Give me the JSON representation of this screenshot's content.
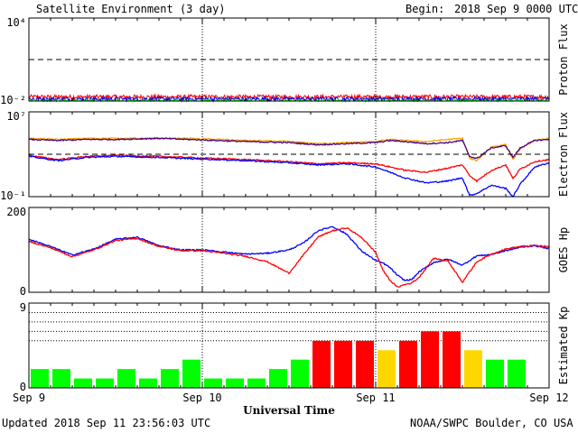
{
  "header": {
    "title": "Satellite Environment (3 day)",
    "begin_label": "Begin:",
    "begin_value": "2018 Sep 9 0000 UTC"
  },
  "footer": {
    "updated": "Updated 2018 Sep 11 23:56:03 UTC",
    "credit": "NOAA/SWPC Boulder, CO USA"
  },
  "chart_data": [
    {
      "type": "line",
      "ylabel": "Proton Flux",
      "scale": "log",
      "ylim": [
        0.01,
        10000
      ],
      "yticks": [
        "10⁴",
        "10⁻²"
      ],
      "threshold": 10,
      "series": [
        {
          "color": "#ff0000",
          "level": 0.02,
          "noise": 0.15
        },
        {
          "color": "#0000ff",
          "level": 0.014,
          "noise": 0.15
        },
        {
          "color": "#00ff00",
          "level": 0.01,
          "noise": 0.12
        }
      ]
    },
    {
      "type": "line",
      "ylabel": "Electron Flux",
      "scale": "log",
      "ylim": [
        0.1,
        10000000
      ],
      "yticks": [
        "10⁷",
        "10⁻¹"
      ],
      "threshold": 1000,
      "series": [
        {
          "color": "#ffa500",
          "x": [
            0,
            4,
            8,
            12,
            18,
            22,
            26,
            30,
            36,
            40,
            44,
            48,
            50,
            52,
            55,
            58,
            60,
            61,
            62,
            64,
            66,
            67,
            68,
            70,
            72
          ],
          "y": [
            31623,
            25119,
            31623,
            31623,
            31623,
            31623,
            25119,
            19953,
            15849,
            10000,
            12589,
            15849,
            25119,
            19953,
            15849,
            25119,
            31623,
            398,
            251,
            5012,
            8000,
            316,
            3162,
            19953,
            31623
          ]
        },
        {
          "color": "#4b0082",
          "x": [
            0,
            4,
            8,
            12,
            18,
            22,
            26,
            30,
            36,
            40,
            44,
            48,
            50,
            52,
            55,
            58,
            60,
            61,
            62,
            64,
            66,
            67,
            68,
            70,
            72
          ],
          "y": [
            25119,
            19953,
            25119,
            25119,
            31623,
            25119,
            19953,
            15849,
            12589,
            7943,
            10000,
            12589,
            19953,
            15849,
            10000,
            12589,
            19953,
            631,
            398,
            3981,
            6310,
            501,
            3981,
            19953,
            25119
          ]
        },
        {
          "color": "#ff0000",
          "x": [
            0,
            4,
            8,
            12,
            18,
            22,
            26,
            30,
            36,
            40,
            44,
            48,
            50,
            52,
            55,
            58,
            60,
            61,
            62,
            64,
            66,
            67,
            68,
            70,
            72
          ],
          "y": [
            794,
            316,
            631,
            794,
            631,
            501,
            398,
            316,
            200,
            126,
            158,
            125,
            63,
            32,
            20,
            50,
            100,
            10,
            3,
            30,
            100,
            5,
            40,
            200,
            316
          ]
        },
        {
          "color": "#0000ff",
          "x": [
            0,
            4,
            8,
            12,
            18,
            22,
            26,
            30,
            36,
            40,
            44,
            48,
            50,
            52,
            55,
            58,
            60,
            61,
            62,
            64,
            66,
            67,
            68,
            70,
            72
          ],
          "y": [
            631,
            251,
            501,
            631,
            501,
            398,
            316,
            251,
            158,
            100,
            126,
            63,
            20,
            6,
            2,
            3,
            6,
            0.13,
            0.2,
            1.2,
            0.6,
            0.1,
            1.5,
            63,
            158
          ]
        }
      ]
    },
    {
      "type": "line",
      "ylabel": "GOES Hp",
      "ylim": [
        0,
        200
      ],
      "yticks": [
        "200",
        "0"
      ],
      "series": [
        {
          "color": "#0000ff",
          "x": [
            0,
            3,
            6,
            9,
            12,
            15,
            18,
            21,
            24,
            27,
            30,
            33,
            36,
            38,
            40,
            42,
            44,
            46,
            48,
            49,
            50,
            51,
            52,
            53,
            54,
            56,
            58,
            60,
            62,
            64,
            66,
            68,
            70,
            72
          ],
          "y": [
            125,
            108,
            88,
            102,
            125,
            130,
            110,
            100,
            100,
            95,
            90,
            92,
            100,
            116,
            145,
            155,
            137,
            98,
            75,
            69,
            58,
            40,
            28,
            30,
            48,
            70,
            78,
            64,
            86,
            89,
            98,
            106,
            110,
            103
          ]
        },
        {
          "color": "#ff0000",
          "x": [
            0,
            3,
            6,
            9,
            12,
            15,
            18,
            21,
            24,
            27,
            30,
            33,
            36,
            38,
            40,
            42,
            44,
            46,
            48,
            49,
            50,
            51,
            52,
            53,
            54,
            56,
            58,
            60,
            62,
            64,
            66,
            68,
            70,
            72
          ],
          "y": [
            120,
            105,
            84,
            100,
            122,
            127,
            108,
            98,
            98,
            92,
            85,
            72,
            45,
            88,
            130,
            145,
            152,
            130,
            94,
            52,
            28,
            12,
            18,
            22,
            35,
            80,
            74,
            24,
            72,
            90,
            102,
            108,
            110,
            108
          ]
        }
      ]
    },
    {
      "type": "bar",
      "ylabel": "Estimated Kp",
      "ylim": [
        0,
        9
      ],
      "yticks": [
        "9",
        "0"
      ],
      "values": [
        2,
        2,
        1,
        1,
        2,
        1,
        2,
        3,
        1,
        1,
        1,
        2,
        3,
        5,
        5,
        5,
        4,
        5,
        6,
        6,
        4,
        3,
        3
      ],
      "colors": [
        "#00ff00",
        "#00ff00",
        "#00ff00",
        "#00ff00",
        "#00ff00",
        "#00ff00",
        "#00ff00",
        "#00ff00",
        "#00ff00",
        "#00ff00",
        "#00ff00",
        "#00ff00",
        "#00ff00",
        "#ff0000",
        "#ff0000",
        "#ff0000",
        "#ffd700",
        "#ff0000",
        "#ff0000",
        "#ff0000",
        "#ffd700",
        "#00ff00",
        "#00ff00"
      ],
      "reference_levels": [
        5,
        6,
        7,
        8
      ]
    }
  ],
  "x_axis": {
    "label": "Universal Time",
    "ticks": [
      "Sep 9",
      "Sep 10",
      "Sep 11",
      "Sep 12"
    ],
    "hours": 72
  }
}
